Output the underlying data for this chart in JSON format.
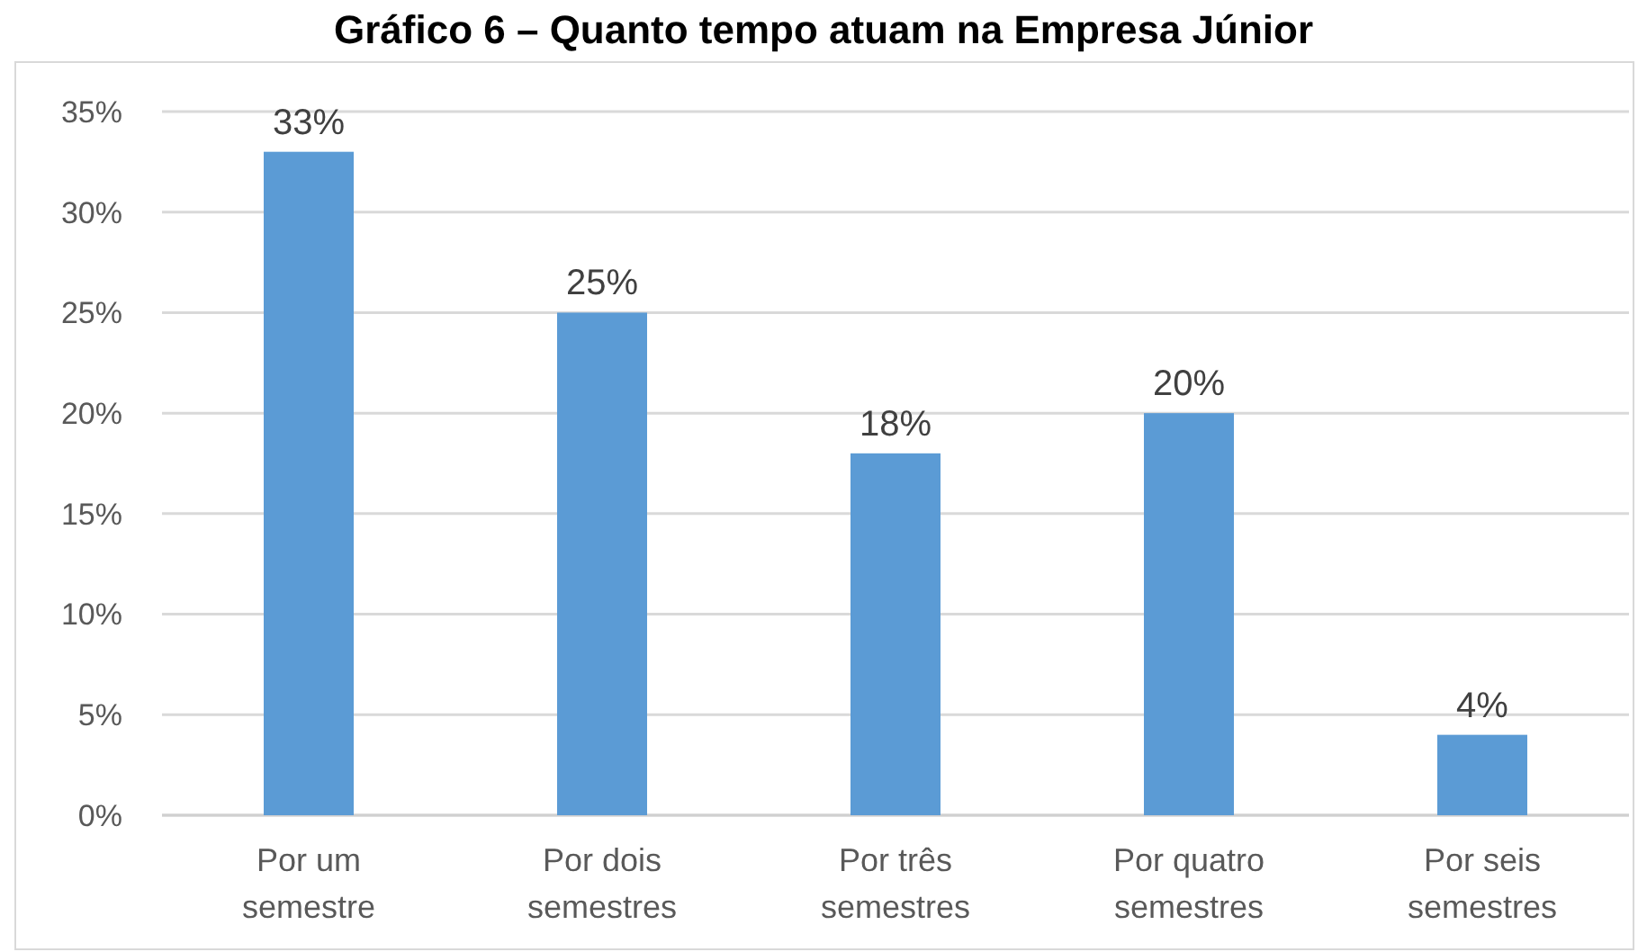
{
  "chart_data": {
    "type": "bar",
    "title": "Gráfico 6 – Quanto tempo atuam na Empresa Júnior",
    "categories": [
      "Por um semestre",
      "Por dois semestres",
      "Por três semestres",
      "Por quatro semestres",
      "Por seis semestres"
    ],
    "values": [
      33,
      25,
      18,
      20,
      4
    ],
    "value_labels": [
      "33%",
      "25%",
      "18%",
      "20%",
      "4%"
    ],
    "color": "#5b9bd5",
    "ylim": [
      0,
      35
    ],
    "yticks": [
      {
        "value": 0,
        "label": "0%"
      },
      {
        "value": 5,
        "label": "5%"
      },
      {
        "value": 10,
        "label": "10%"
      },
      {
        "value": 15,
        "label": "15%"
      },
      {
        "value": 20,
        "label": "20%"
      },
      {
        "value": 25,
        "label": "25%"
      },
      {
        "value": 30,
        "label": "30%"
      },
      {
        "value": 35,
        "label": "35%"
      }
    ],
    "grid": "y"
  }
}
